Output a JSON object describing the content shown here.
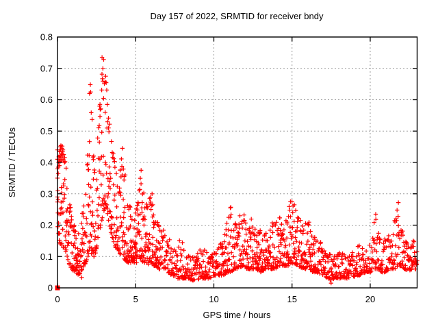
{
  "window": {
    "background": "#ffffff"
  },
  "chart_data": {
    "type": "scatter",
    "title": "Day 157 of 2022, SRMTID for receiver bndy",
    "xlabel": "GPS time / hours",
    "ylabel": "SRMTID / TECUs",
    "xlim": [
      0,
      23
    ],
    "ylim": [
      0,
      0.8
    ],
    "xticks": {
      "values": [
        0,
        5,
        10,
        15,
        20
      ],
      "labels": [
        "0",
        "5",
        "10",
        "15",
        "20"
      ]
    },
    "yticks": {
      "values": [
        0,
        0.1,
        0.2,
        0.3,
        0.4,
        0.5,
        0.6,
        0.7,
        0.8
      ],
      "labels": [
        "0",
        "0.1",
        "0.2",
        "0.3",
        "0.4",
        "0.5",
        "0.6",
        "0.7",
        "0.8"
      ]
    },
    "grid": {
      "visible": true,
      "style": "dotted",
      "color": "#999999"
    },
    "legend": "none",
    "marker_color": "#ff0000",
    "series": [
      {
        "name": "SRMTID",
        "marker": "plus",
        "color": "#ff0000",
        "sampling": "approx. 1 sample per minute, 0-23 h",
        "envelope_points": [
          [
            0.0,
            0.2,
            0.46
          ],
          [
            0.15,
            0.14,
            0.45
          ],
          [
            0.35,
            0.13,
            0.45
          ],
          [
            0.5,
            0.12,
            0.42
          ],
          [
            0.7,
            0.08,
            0.3
          ],
          [
            0.9,
            0.06,
            0.24
          ],
          [
            1.1,
            0.05,
            0.2
          ],
          [
            1.4,
            0.04,
            0.18
          ],
          [
            1.6,
            0.06,
            0.24
          ],
          [
            1.8,
            0.08,
            0.33
          ],
          [
            1.95,
            0.1,
            0.5
          ],
          [
            2.1,
            0.12,
            0.65
          ],
          [
            2.25,
            0.1,
            0.52
          ],
          [
            2.4,
            0.1,
            0.38
          ],
          [
            2.55,
            0.14,
            0.5
          ],
          [
            2.7,
            0.18,
            0.62
          ],
          [
            2.85,
            0.22,
            0.74
          ],
          [
            3.0,
            0.25,
            0.71
          ],
          [
            3.15,
            0.26,
            0.68
          ],
          [
            3.3,
            0.2,
            0.56
          ],
          [
            3.5,
            0.16,
            0.46
          ],
          [
            3.7,
            0.13,
            0.42
          ],
          [
            3.9,
            0.11,
            0.38
          ],
          [
            4.1,
            0.1,
            0.44
          ],
          [
            4.3,
            0.09,
            0.4
          ],
          [
            4.5,
            0.08,
            0.3
          ],
          [
            4.7,
            0.08,
            0.26
          ],
          [
            4.9,
            0.08,
            0.23
          ],
          [
            5.1,
            0.08,
            0.28
          ],
          [
            5.3,
            0.09,
            0.36
          ],
          [
            5.5,
            0.08,
            0.33
          ],
          [
            5.7,
            0.08,
            0.27
          ],
          [
            5.9,
            0.07,
            0.3
          ],
          [
            6.1,
            0.07,
            0.28
          ],
          [
            6.3,
            0.07,
            0.24
          ],
          [
            6.5,
            0.06,
            0.21
          ],
          [
            6.8,
            0.06,
            0.19
          ],
          [
            7.0,
            0.05,
            0.17
          ],
          [
            7.3,
            0.04,
            0.14
          ],
          [
            7.6,
            0.03,
            0.12
          ],
          [
            7.9,
            0.03,
            0.17
          ],
          [
            8.1,
            0.03,
            0.12
          ],
          [
            8.4,
            0.03,
            0.1
          ],
          [
            8.8,
            0.02,
            0.1
          ],
          [
            9.1,
            0.03,
            0.12
          ],
          [
            9.4,
            0.03,
            0.13
          ],
          [
            9.7,
            0.03,
            0.1
          ],
          [
            10.0,
            0.04,
            0.11
          ],
          [
            10.3,
            0.04,
            0.13
          ],
          [
            10.6,
            0.04,
            0.15
          ],
          [
            10.9,
            0.05,
            0.22
          ],
          [
            11.1,
            0.05,
            0.26
          ],
          [
            11.3,
            0.06,
            0.2
          ],
          [
            11.6,
            0.06,
            0.23
          ],
          [
            11.9,
            0.07,
            0.25
          ],
          [
            12.1,
            0.06,
            0.2
          ],
          [
            12.4,
            0.06,
            0.22
          ],
          [
            12.7,
            0.06,
            0.18
          ],
          [
            13.0,
            0.05,
            0.19
          ],
          [
            13.3,
            0.06,
            0.17
          ],
          [
            13.6,
            0.06,
            0.2
          ],
          [
            13.9,
            0.06,
            0.22
          ],
          [
            14.2,
            0.07,
            0.24
          ],
          [
            14.5,
            0.07,
            0.2
          ],
          [
            14.8,
            0.07,
            0.27
          ],
          [
            15.1,
            0.08,
            0.28
          ],
          [
            15.4,
            0.07,
            0.23
          ],
          [
            15.7,
            0.06,
            0.2
          ],
          [
            16.0,
            0.06,
            0.22
          ],
          [
            16.3,
            0.05,
            0.18
          ],
          [
            16.6,
            0.05,
            0.16
          ],
          [
            17.0,
            0.04,
            0.14
          ],
          [
            17.3,
            0.03,
            0.12
          ],
          [
            17.6,
            0.02,
            0.1
          ],
          [
            17.9,
            0.03,
            0.11
          ],
          [
            18.2,
            0.03,
            0.13
          ],
          [
            18.5,
            0.03,
            0.1
          ],
          [
            18.8,
            0.03,
            0.11
          ],
          [
            19.1,
            0.04,
            0.13
          ],
          [
            19.4,
            0.04,
            0.14
          ],
          [
            19.7,
            0.05,
            0.12
          ],
          [
            20.0,
            0.05,
            0.14
          ],
          [
            20.3,
            0.06,
            0.24
          ],
          [
            20.5,
            0.06,
            0.21
          ],
          [
            20.7,
            0.05,
            0.15
          ],
          [
            21.0,
            0.05,
            0.16
          ],
          [
            21.3,
            0.06,
            0.18
          ],
          [
            21.6,
            0.06,
            0.22
          ],
          [
            21.8,
            0.07,
            0.26
          ],
          [
            22.0,
            0.07,
            0.2
          ],
          [
            22.2,
            0.06,
            0.16
          ],
          [
            22.5,
            0.05,
            0.13
          ],
          [
            22.8,
            0.06,
            0.16
          ],
          [
            23.0,
            0.06,
            0.12
          ]
        ],
        "outlier_points": [
          [
            2.85,
            0.735
          ],
          [
            2.9,
            0.7
          ],
          [
            3.08,
            0.675
          ],
          [
            2.1,
            0.648
          ],
          [
            2.05,
            0.62
          ],
          [
            21.8,
            0.272
          ],
          [
            21.8,
            0.198
          ],
          [
            22.9,
            0.09
          ],
          [
            22.95,
            0.075
          ],
          [
            22.85,
            0.1
          ],
          [
            17.5,
            0.015
          ],
          [
            1.55,
            0.033
          ],
          [
            5.35,
            0.375
          ],
          [
            4.15,
            0.445
          ],
          [
            6.05,
            0.3
          ],
          [
            11.05,
            0.255
          ],
          [
            14.9,
            0.275
          ],
          [
            15.15,
            0.265
          ],
          [
            20.35,
            0.235
          ],
          [
            0.0,
            0.44
          ],
          [
            0.0,
            0.41
          ],
          [
            0.01,
            0.38
          ],
          [
            0.0,
            0.35
          ],
          [
            0.02,
            0.31
          ],
          [
            0.0,
            0.29
          ],
          [
            0.1,
            0.41
          ],
          [
            0.13,
            0.435
          ],
          [
            0.16,
            0.42
          ],
          [
            0.2,
            0.44
          ],
          [
            0.22,
            0.415
          ],
          [
            0.25,
            0.43
          ],
          [
            0.28,
            0.445
          ],
          [
            0.3,
            0.42
          ],
          [
            0.33,
            0.435
          ],
          [
            0.36,
            0.41
          ],
          [
            0.4,
            0.425
          ],
          [
            0.44,
            0.4
          ],
          [
            0.05,
            0.385
          ],
          [
            0.07,
            0.4
          ],
          [
            0.18,
            0.45
          ],
          [
            0.35,
            0.44
          ],
          [
            0.26,
            0.405
          ],
          [
            0.12,
            0.39
          ]
        ],
        "zero_cluster_point": [
          0,
          0
        ]
      }
    ]
  }
}
